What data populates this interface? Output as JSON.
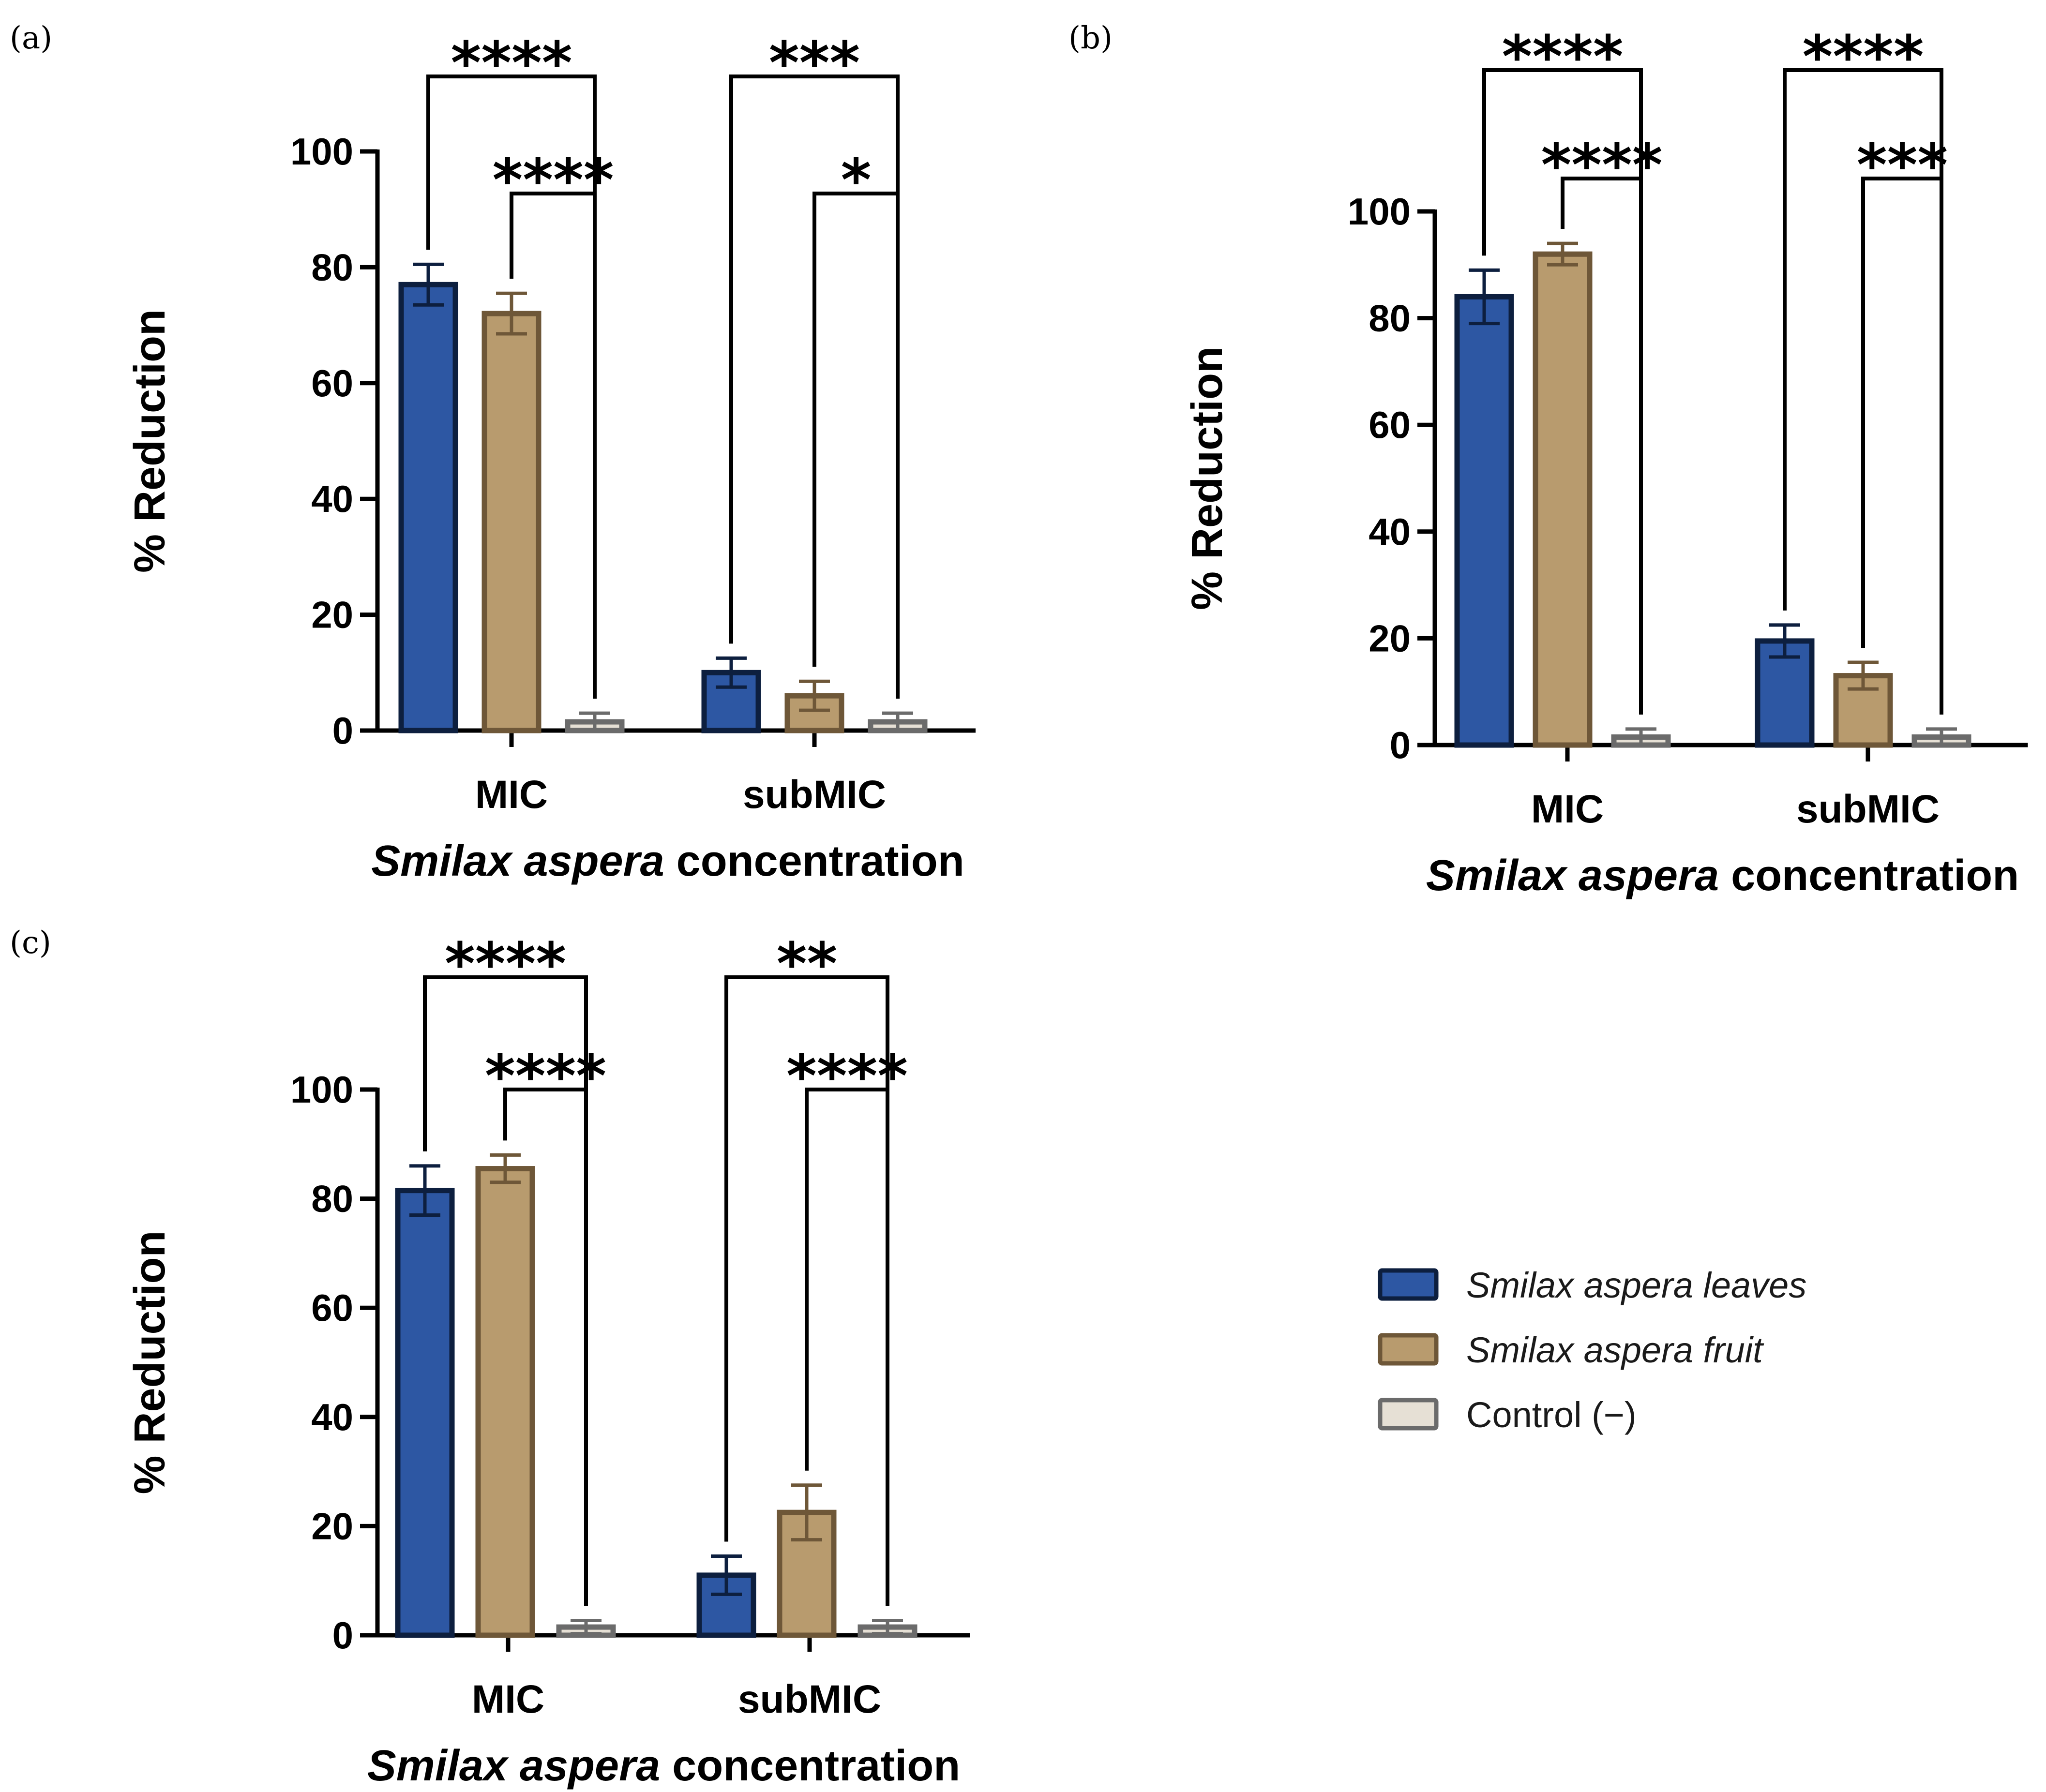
{
  "colors": {
    "leaves_fill": "#2d57a3",
    "leaves_stroke": "#0d1f3f",
    "fruit_fill": "#b89b6e",
    "fruit_stroke": "#6e5738",
    "control_fill": "#e6e0d5",
    "control_stroke": "#6b6b6b"
  },
  "legend": {
    "entries": [
      {
        "label": "Smilax aspera leaves",
        "style": "italic",
        "series": "leaves"
      },
      {
        "label": "Smilax aspera fruit",
        "style": "italic",
        "series": "fruit"
      },
      {
        "label": "Control (−)",
        "style": "normal",
        "series": "control"
      }
    ]
  },
  "chart_data": [
    {
      "panel": "(a)",
      "type": "bar",
      "categories": [
        "MIC",
        "subMIC"
      ],
      "series": [
        {
          "name": "Smilax aspera leaves",
          "key": "leaves",
          "values": [
            77,
            10
          ],
          "errors": [
            3.5,
            2.5
          ]
        },
        {
          "name": "Smilax aspera fruit",
          "key": "fruit",
          "values": [
            72,
            6
          ],
          "errors": [
            3.5,
            2.5
          ]
        },
        {
          "name": "Control (−)",
          "key": "control",
          "values": [
            1.5,
            1.5
          ],
          "errors": [
            1.5,
            1.5
          ]
        }
      ],
      "ylim": [
        0,
        100
      ],
      "yticks": [
        0,
        20,
        40,
        60,
        80,
        100
      ],
      "ylabel": "% Reduction",
      "xlabel_italic": "Smilax aspera",
      "xlabel_rest": " concentration",
      "significance": [
        {
          "category": 0,
          "from": 0,
          "to": 2,
          "label": "****",
          "level": 0
        },
        {
          "category": 0,
          "from": 1,
          "to": 2,
          "label": "****",
          "level": 1
        },
        {
          "category": 1,
          "from": 0,
          "to": 2,
          "label": "***",
          "level": 0
        },
        {
          "category": 1,
          "from": 1,
          "to": 2,
          "label": "*",
          "level": 1
        }
      ]
    },
    {
      "panel": "(b)",
      "type": "bar",
      "categories": [
        "MIC",
        "subMIC"
      ],
      "series": [
        {
          "name": "Smilax aspera leaves",
          "key": "leaves",
          "values": [
            84,
            19.5
          ],
          "errors": [
            5,
            3
          ]
        },
        {
          "name": "Smilax aspera fruit",
          "key": "fruit",
          "values": [
            92,
            13
          ],
          "errors": [
            2,
            2.5
          ]
        },
        {
          "name": "Control (−)",
          "key": "control",
          "values": [
            1.5,
            1.5
          ],
          "errors": [
            1.5,
            1.5
          ]
        }
      ],
      "ylim": [
        0,
        100
      ],
      "yticks": [
        0,
        20,
        40,
        60,
        80,
        100
      ],
      "ylabel": "% Reduction",
      "xlabel_italic": "Smilax aspera",
      "xlabel_rest": " concentration",
      "significance": [
        {
          "category": 0,
          "from": 0,
          "to": 2,
          "label": "****",
          "level": 0
        },
        {
          "category": 0,
          "from": 1,
          "to": 2,
          "label": "****",
          "level": 1
        },
        {
          "category": 1,
          "from": 0,
          "to": 2,
          "label": "****",
          "level": 0
        },
        {
          "category": 1,
          "from": 1,
          "to": 2,
          "label": "***",
          "level": 1
        }
      ]
    },
    {
      "panel": "(c)",
      "type": "bar",
      "categories": [
        "MIC",
        "subMIC"
      ],
      "series": [
        {
          "name": "Smilax aspera leaves",
          "key": "leaves",
          "values": [
            81.5,
            11
          ],
          "errors": [
            4.5,
            3.5
          ]
        },
        {
          "name": "Smilax aspera fruit",
          "key": "fruit",
          "values": [
            85.5,
            22.5
          ],
          "errors": [
            2.5,
            5
          ]
        },
        {
          "name": "Control (−)",
          "key": "control",
          "values": [
            1.5,
            1.5
          ],
          "errors": [
            1.2,
            1.2
          ]
        }
      ],
      "ylim": [
        0,
        100
      ],
      "yticks": [
        0,
        20,
        40,
        60,
        80,
        100
      ],
      "ylabel": "% Reduction",
      "xlabel_italic": "Smilax aspera",
      "xlabel_rest": " concentration",
      "significance": [
        {
          "category": 0,
          "from": 0,
          "to": 2,
          "label": "****",
          "level": 0
        },
        {
          "category": 0,
          "from": 1,
          "to": 2,
          "label": "****",
          "level": 1
        },
        {
          "category": 1,
          "from": 0,
          "to": 2,
          "label": "**",
          "level": 0
        },
        {
          "category": 1,
          "from": 1,
          "to": 2,
          "label": "****",
          "level": 1
        }
      ]
    }
  ]
}
